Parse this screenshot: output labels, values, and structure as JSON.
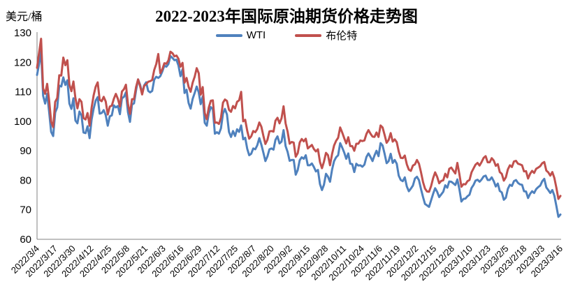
{
  "header": {
    "title": "2022-2023年国际原油期货价格走势图",
    "unit_label": "美元/桶"
  },
  "legend": {
    "items": [
      {
        "label": "WTI",
        "color": "#4F81BD"
      },
      {
        "label": "布伦特",
        "color": "#C0504D"
      }
    ]
  },
  "chart_data": {
    "type": "line",
    "title": "2022-2023年国际原油期货价格走势图",
    "xlabel": "",
    "ylabel": "美元/桶",
    "ylim": [
      60,
      130
    ],
    "ytick_interval": 10,
    "grid": false,
    "legend_position": "top-center",
    "axis_color": "#808080",
    "tick_label_color": "#000000",
    "x_tick_labels": [
      "2022/3/4",
      "2022/3/17",
      "2022/3/30",
      "2022/4/12",
      "2022/4/25",
      "2022/5/8",
      "2022/5/21",
      "2022/6/3",
      "2022/6/16",
      "2022/6/29",
      "2022/7/12",
      "2022/7/25",
      "2022/8/7",
      "2022/8/20",
      "2022/9/2",
      "2022/9/15",
      "2022/9/28",
      "2022/10/11",
      "2022/10/24",
      "2022/11/6",
      "2022/11/19",
      "2022/12/2",
      "2022/12/15",
      "2022/12/28",
      "2023/1/10",
      "2023/1/23",
      "2023/2/5",
      "2023/2/18",
      "2023/3/3",
      "2023/3/16"
    ],
    "x": [
      "2022/3/4",
      "2022/3/7",
      "2022/3/8",
      "2022/3/9",
      "2022/3/10",
      "2022/3/11",
      "2022/3/14",
      "2022/3/15",
      "2022/3/16",
      "2022/3/17",
      "2022/3/18",
      "2022/3/21",
      "2022/3/22",
      "2022/3/23",
      "2022/3/24",
      "2022/3/25",
      "2022/3/28",
      "2022/3/29",
      "2022/3/30",
      "2022/3/31",
      "2022/4/1",
      "2022/4/4",
      "2022/4/5",
      "2022/4/6",
      "2022/4/7",
      "2022/4/8",
      "2022/4/11",
      "2022/4/12",
      "2022/4/13",
      "2022/4/14",
      "2022/4/18",
      "2022/4/19",
      "2022/4/20",
      "2022/4/21",
      "2022/4/22",
      "2022/4/25",
      "2022/4/26",
      "2022/4/27",
      "2022/4/28",
      "2022/4/29",
      "2022/5/2",
      "2022/5/3",
      "2022/5/4",
      "2022/5/5",
      "2022/5/6",
      "2022/5/9",
      "2022/5/10",
      "2022/5/11",
      "2022/5/12",
      "2022/5/13",
      "2022/5/16",
      "2022/5/17",
      "2022/5/18",
      "2022/5/19",
      "2022/5/20",
      "2022/5/23",
      "2022/5/24",
      "2022/5/25",
      "2022/5/26",
      "2022/5/27",
      "2022/5/31",
      "2022/6/1",
      "2022/6/2",
      "2022/6/3",
      "2022/6/6",
      "2022/6/7",
      "2022/6/8",
      "2022/6/9",
      "2022/6/10",
      "2022/6/13",
      "2022/6/14",
      "2022/6/15",
      "2022/6/16",
      "2022/6/17",
      "2022/6/21",
      "2022/6/22",
      "2022/6/23",
      "2022/6/24",
      "2022/6/27",
      "2022/6/28",
      "2022/6/29",
      "2022/6/30",
      "2022/7/1",
      "2022/7/5",
      "2022/7/6",
      "2022/7/7",
      "2022/7/8",
      "2022/7/11",
      "2022/7/12",
      "2022/7/13",
      "2022/7/14",
      "2022/7/15",
      "2022/7/18",
      "2022/7/19",
      "2022/7/20",
      "2022/7/21",
      "2022/7/22",
      "2022/7/25",
      "2022/7/26",
      "2022/7/27",
      "2022/7/28",
      "2022/7/29",
      "2022/8/1",
      "2022/8/2",
      "2022/8/3",
      "2022/8/4",
      "2022/8/5",
      "2022/8/8",
      "2022/8/9",
      "2022/8/10",
      "2022/8/11",
      "2022/8/12",
      "2022/8/15",
      "2022/8/16",
      "2022/8/17",
      "2022/8/18",
      "2022/8/19",
      "2022/8/22",
      "2022/8/23",
      "2022/8/24",
      "2022/8/25",
      "2022/8/26",
      "2022/8/29",
      "2022/8/30",
      "2022/8/31",
      "2022/9/1",
      "2022/9/2",
      "2022/9/6",
      "2022/9/7",
      "2022/9/8",
      "2022/9/9",
      "2022/9/12",
      "2022/9/13",
      "2022/9/14",
      "2022/9/15",
      "2022/9/16",
      "2022/9/19",
      "2022/9/20",
      "2022/9/21",
      "2022/9/22",
      "2022/9/23",
      "2022/9/26",
      "2022/9/27",
      "2022/9/28",
      "2022/9/29",
      "2022/9/30",
      "2022/10/3",
      "2022/10/4",
      "2022/10/5",
      "2022/10/6",
      "2022/10/7",
      "2022/10/10",
      "2022/10/11",
      "2022/10/12",
      "2022/10/13",
      "2022/10/14",
      "2022/10/17",
      "2022/10/18",
      "2022/10/19",
      "2022/10/20",
      "2022/10/21",
      "2022/10/24",
      "2022/10/25",
      "2022/10/26",
      "2022/10/27",
      "2022/10/28",
      "2022/10/31",
      "2022/11/1",
      "2022/11/2",
      "2022/11/3",
      "2022/11/4",
      "2022/11/7",
      "2022/11/8",
      "2022/11/9",
      "2022/11/10",
      "2022/11/11",
      "2022/11/14",
      "2022/11/15",
      "2022/11/16",
      "2022/11/17",
      "2022/11/18",
      "2022/11/21",
      "2022/11/22",
      "2022/11/23",
      "2022/11/25",
      "2022/11/28",
      "2022/11/29",
      "2022/11/30",
      "2022/12/1",
      "2022/12/2",
      "2022/12/5",
      "2022/12/6",
      "2022/12/7",
      "2022/12/8",
      "2022/12/9",
      "2022/12/12",
      "2022/12/13",
      "2022/12/14",
      "2022/12/15",
      "2022/12/16",
      "2022/12/19",
      "2022/12/20",
      "2022/12/21",
      "2022/12/22",
      "2022/12/23",
      "2022/12/27",
      "2022/12/28",
      "2022/12/29",
      "2022/12/30",
      "2023/1/3",
      "2023/1/4",
      "2023/1/5",
      "2023/1/6",
      "2023/1/9",
      "2023/1/10",
      "2023/1/11",
      "2023/1/12",
      "2023/1/13",
      "2023/1/17",
      "2023/1/18",
      "2023/1/19",
      "2023/1/20",
      "2023/1/23",
      "2023/1/24",
      "2023/1/25",
      "2023/1/26",
      "2023/1/27",
      "2023/1/30",
      "2023/1/31",
      "2023/2/1",
      "2023/2/2",
      "2023/2/3",
      "2023/2/6",
      "2023/2/7",
      "2023/2/8",
      "2023/2/9",
      "2023/2/10",
      "2023/2/13",
      "2023/2/14",
      "2023/2/15",
      "2023/2/16",
      "2023/2/17",
      "2023/2/21",
      "2023/2/22",
      "2023/2/23",
      "2023/2/24",
      "2023/2/27",
      "2023/2/28",
      "2023/3/1",
      "2023/3/2",
      "2023/3/3",
      "2023/3/6",
      "2023/3/7",
      "2023/3/8",
      "2023/3/9",
      "2023/3/10",
      "2023/3/13",
      "2023/3/14",
      "2023/3/15",
      "2023/3/16"
    ],
    "series": [
      {
        "name": "WTI",
        "color": "#4F81BD",
        "values": [
          115.7,
          119.4,
          123.7,
          108.7,
          106.0,
          109.3,
          103.0,
          96.4,
          95.0,
          103.0,
          104.7,
          112.1,
          111.8,
          114.9,
          112.3,
          113.9,
          106.0,
          104.2,
          107.8,
          100.3,
          99.3,
          103.3,
          102.0,
          96.2,
          96.0,
          98.3,
          94.3,
          100.6,
          104.3,
          107.0,
          108.2,
          102.6,
          102.8,
          103.8,
          102.1,
          98.5,
          101.7,
          102.0,
          105.4,
          104.7,
          105.2,
          102.4,
          107.8,
          108.3,
          109.8,
          103.1,
          99.8,
          105.7,
          106.1,
          110.5,
          114.2,
          112.4,
          109.6,
          112.2,
          113.2,
          110.3,
          109.8,
          110.3,
          114.1,
          115.1,
          114.7,
          115.3,
          116.9,
          118.9,
          118.5,
          119.4,
          122.1,
          121.5,
          120.7,
          120.9,
          118.9,
          115.3,
          117.6,
          109.6,
          110.7,
          106.2,
          104.3,
          107.6,
          109.6,
          111.8,
          109.8,
          105.8,
          108.4,
          99.5,
          98.5,
          102.7,
          104.8,
          104.1,
          95.8,
          96.3,
          95.8,
          97.6,
          102.6,
          104.2,
          102.3,
          96.4,
          94.7,
          96.7,
          95.0,
          97.3,
          96.4,
          98.6,
          93.9,
          94.4,
          90.7,
          88.5,
          89.0,
          90.8,
          90.5,
          91.9,
          94.3,
          92.1,
          89.4,
          86.5,
          88.1,
          90.5,
          90.8,
          90.4,
          93.7,
          94.9,
          92.5,
          93.1,
          97.0,
          91.6,
          89.6,
          86.6,
          86.9,
          86.9,
          81.9,
          83.5,
          86.8,
          87.8,
          87.3,
          88.5,
          85.1,
          85.1,
          85.7,
          84.5,
          83.0,
          83.5,
          78.7,
          76.7,
          78.5,
          82.2,
          81.2,
          79.5,
          83.6,
          86.5,
          87.8,
          88.5,
          92.6,
          91.1,
          89.4,
          87.3,
          89.1,
          85.6,
          85.5,
          82.8,
          85.6,
          85.0,
          85.1,
          84.6,
          85.3,
          87.9,
          89.1,
          87.9,
          86.5,
          88.4,
          90.0,
          88.2,
          92.6,
          91.8,
          89.0,
          85.8,
          86.5,
          89.0,
          85.9,
          86.9,
          85.6,
          81.6,
          80.1,
          79.7,
          81.0,
          77.9,
          76.3,
          77.2,
          78.2,
          80.6,
          81.2,
          80.0,
          77.0,
          74.3,
          72.0,
          71.5,
          71.0,
          73.2,
          75.4,
          77.3,
          76.1,
          74.3,
          75.2,
          76.1,
          78.3,
          77.5,
          79.6,
          79.5,
          79.0,
          78.4,
          80.3,
          77.0,
          72.8,
          73.7,
          73.8,
          74.6,
          75.1,
          77.4,
          78.4,
          79.9,
          80.2,
          79.5,
          80.3,
          81.3,
          81.6,
          80.1,
          80.1,
          81.0,
          79.7,
          77.9,
          78.9,
          76.4,
          75.9,
          73.4,
          74.1,
          77.1,
          78.5,
          78.1,
          79.7,
          80.1,
          79.1,
          78.6,
          78.5,
          76.3,
          76.2,
          74.0,
          75.4,
          76.3,
          75.7,
          77.0,
          77.7,
          78.2,
          79.7,
          80.5,
          77.6,
          76.7,
          75.7,
          76.7,
          74.8,
          71.3,
          67.6,
          68.4
        ]
      },
      {
        "name": "布伦特",
        "color": "#C0504D",
        "values": [
          118.1,
          123.2,
          128.0,
          111.1,
          109.3,
          112.7,
          106.9,
          99.9,
          98.0,
          106.6,
          107.9,
          115.6,
          115.5,
          121.6,
          119.0,
          120.7,
          112.5,
          110.2,
          113.5,
          107.9,
          104.4,
          107.5,
          106.6,
          101.1,
          100.6,
          102.8,
          98.5,
          104.6,
          108.8,
          111.7,
          113.2,
          107.3,
          106.8,
          108.3,
          106.7,
          102.3,
          105.0,
          105.3,
          107.6,
          109.3,
          107.6,
          105.0,
          110.1,
          110.9,
          112.4,
          105.9,
          102.5,
          107.5,
          107.5,
          111.6,
          114.2,
          111.9,
          109.1,
          112.0,
          112.6,
          113.4,
          113.6,
          114.0,
          117.4,
          119.4,
          122.8,
          116.3,
          117.6,
          119.7,
          119.5,
          120.6,
          123.6,
          123.1,
          122.0,
          122.3,
          121.2,
          118.5,
          119.8,
          113.1,
          114.7,
          111.7,
          110.0,
          113.1,
          115.1,
          118.0,
          116.3,
          109.0,
          111.6,
          102.8,
          100.7,
          104.7,
          107.0,
          107.1,
          99.5,
          99.6,
          99.1,
          101.2,
          106.3,
          107.4,
          106.9,
          103.9,
          103.2,
          105.2,
          104.4,
          106.6,
          107.1,
          110.0,
          100.0,
          100.5,
          96.8,
          94.1,
          94.9,
          96.7,
          96.3,
          97.4,
          99.6,
          98.2,
          95.1,
          92.3,
          93.7,
          96.6,
          96.7,
          96.5,
          100.2,
          101.2,
          99.3,
          101.0,
          105.1,
          99.3,
          96.5,
          92.4,
          93.0,
          92.8,
          88.0,
          89.2,
          92.8,
          94.0,
          93.2,
          94.1,
          90.8,
          91.4,
          92.0,
          90.6,
          89.8,
          90.5,
          86.2,
          84.1,
          86.3,
          89.3,
          88.5,
          85.1,
          88.9,
          91.8,
          93.4,
          94.4,
          97.9,
          96.2,
          94.3,
          92.5,
          94.6,
          91.6,
          91.6,
          90.0,
          92.4,
          92.4,
          93.5,
          93.3,
          93.5,
          95.7,
          97.0,
          95.8,
          94.8,
          94.7,
          96.2,
          94.7,
          98.6,
          97.9,
          95.4,
          92.7,
          93.7,
          96.0,
          93.1,
          93.9,
          92.9,
          89.8,
          87.6,
          87.5,
          88.4,
          85.4,
          83.6,
          83.2,
          85.0,
          85.4,
          86.9,
          85.6,
          82.7,
          79.4,
          77.2,
          76.2,
          76.1,
          78.0,
          80.7,
          82.7,
          81.2,
          79.0,
          79.8,
          80.0,
          82.2,
          81.0,
          83.9,
          84.3,
          83.3,
          82.3,
          85.9,
          82.1,
          77.8,
          78.7,
          78.6,
          79.7,
          80.1,
          82.7,
          84.0,
          85.3,
          85.9,
          85.0,
          86.2,
          87.6,
          88.2,
          86.1,
          86.1,
          87.5,
          86.7,
          84.9,
          85.5,
          82.8,
          82.2,
          79.9,
          81.0,
          83.7,
          85.1,
          84.5,
          86.4,
          86.6,
          85.6,
          85.4,
          85.1,
          83.0,
          83.1,
          80.6,
          82.2,
          83.2,
          82.5,
          83.9,
          84.3,
          84.8,
          85.8,
          86.2,
          83.3,
          82.7,
          81.6,
          82.8,
          80.8,
          77.5,
          73.7,
          74.7
        ]
      }
    ]
  }
}
